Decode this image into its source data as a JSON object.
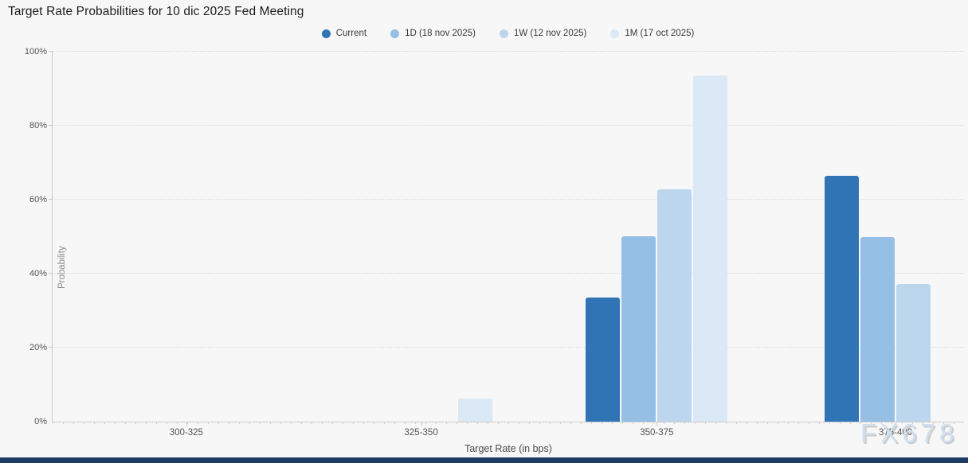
{
  "title": "Target Rate Probabilities for 10 dic 2025 Fed Meeting",
  "watermark": "FX678",
  "colors": {
    "current": "#3074b5",
    "d1": "#95bfe4",
    "w1": "#bcd6ee",
    "m1": "#dbe8f6",
    "background": "#f7f7f7",
    "bottom_bar": "#1e3c64"
  },
  "chart_data": {
    "type": "bar",
    "title": "Target Rate Probabilities for 10 dic 2025 Fed Meeting",
    "categories": [
      "300-325",
      "325-350",
      "350-375",
      "375-400"
    ],
    "series": [
      {
        "name": "Current",
        "color": "#3074b5",
        "values": [
          0,
          0,
          33.5,
          66.5
        ]
      },
      {
        "name": "1D (18 nov 2025)",
        "color": "#95bfe4",
        "values": [
          0,
          0,
          50.2,
          49.8
        ]
      },
      {
        "name": "1W (12 nov 2025)",
        "color": "#bcd6ee",
        "values": [
          0,
          0,
          62.8,
          37.2
        ]
      },
      {
        "name": "1M (17 oct 2025)",
        "color": "#dbe8f6",
        "values": [
          0,
          6.2,
          93.5,
          0
        ]
      }
    ],
    "xlabel": "Target Rate (in bps)",
    "ylabel": "Probability",
    "ylim": [
      0,
      100
    ],
    "yticks": [
      0,
      20,
      40,
      60,
      80,
      100
    ],
    "ytick_format": "percent",
    "grid": "horizontal-dotted",
    "legend_position": "top-center"
  }
}
